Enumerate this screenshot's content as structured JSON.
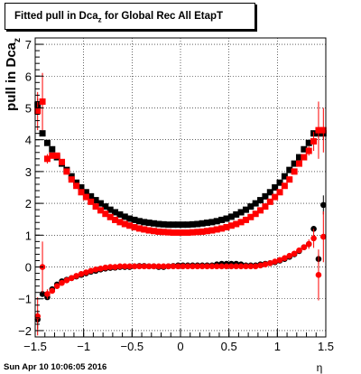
{
  "title": {
    "prefix": "Fitted pull in Dca",
    "sub": "z",
    "suffix": " for Global Rec All EtapT"
  },
  "timestamp": "Sun Apr 10 10:06:05 2016",
  "chart_data": {
    "type": "scatter",
    "title": "Fitted pull in Dcaz for Global Rec All EtapT",
    "xlabel": "η",
    "ylabel": "pull in Dca",
    "ylabel_sub": "z",
    "xlim": [
      -1.5,
      1.5
    ],
    "ylim": [
      -2.2,
      7.2
    ],
    "x_ticks": [
      -1.5,
      -1,
      -0.5,
      0,
      0.5,
      1,
      1.5
    ],
    "x_tick_labels": [
      "−1.5",
      "−1",
      "−0.5",
      "0",
      "0.5",
      "1",
      "1.5"
    ],
    "y_ticks": [
      -2,
      -1,
      0,
      1,
      2,
      3,
      4,
      5,
      6,
      7
    ],
    "y_tick_labels": [
      "−2",
      "−1",
      "0",
      "1",
      "2",
      "3",
      "4",
      "5",
      "6",
      "7"
    ],
    "grid": true,
    "x": [
      -1.475,
      -1.425,
      -1.375,
      -1.325,
      -1.275,
      -1.225,
      -1.175,
      -1.125,
      -1.075,
      -1.025,
      -0.975,
      -0.925,
      -0.875,
      -0.825,
      -0.775,
      -0.725,
      -0.675,
      -0.625,
      -0.575,
      -0.525,
      -0.475,
      -0.425,
      -0.375,
      -0.325,
      -0.275,
      -0.225,
      -0.175,
      -0.125,
      -0.075,
      -0.025,
      0.025,
      0.075,
      0.125,
      0.175,
      0.225,
      0.275,
      0.325,
      0.375,
      0.425,
      0.475,
      0.525,
      0.575,
      0.625,
      0.675,
      0.725,
      0.775,
      0.825,
      0.875,
      0.925,
      0.975,
      1.025,
      1.075,
      1.125,
      1.175,
      1.225,
      1.275,
      1.325,
      1.375,
      1.425,
      1.475
    ],
    "series": [
      {
        "color": "#000000",
        "marker": "square",
        "values": [
          5.1,
          4.2,
          3.9,
          3.7,
          3.45,
          3.25,
          3.05,
          2.85,
          2.65,
          2.5,
          2.35,
          2.22,
          2.1,
          2.0,
          1.9,
          1.8,
          1.72,
          1.65,
          1.58,
          1.52,
          1.48,
          1.44,
          1.41,
          1.39,
          1.37,
          1.35,
          1.34,
          1.33,
          1.33,
          1.33,
          1.33,
          1.33,
          1.34,
          1.35,
          1.37,
          1.39,
          1.41,
          1.44,
          1.48,
          1.52,
          1.58,
          1.65,
          1.72,
          1.8,
          1.9,
          2.0,
          2.1,
          2.22,
          2.35,
          2.5,
          2.65,
          2.85,
          3.05,
          3.25,
          3.45,
          3.7,
          3.9,
          4.2,
          4.2,
          4.2
        ],
        "errors": [
          0.2,
          0.1,
          0.08,
          0.05,
          0.04,
          0.03,
          0.03,
          0.02,
          0.02,
          0.02,
          0.02,
          0.02,
          0.02,
          0.02,
          0.02,
          0.02,
          0.02,
          0.02,
          0.02,
          0.02,
          0.02,
          0.02,
          0.02,
          0.02,
          0.02,
          0.02,
          0.02,
          0.02,
          0.02,
          0.02,
          0.02,
          0.02,
          0.02,
          0.02,
          0.02,
          0.02,
          0.02,
          0.02,
          0.02,
          0.02,
          0.02,
          0.02,
          0.02,
          0.02,
          0.02,
          0.02,
          0.02,
          0.02,
          0.02,
          0.02,
          0.02,
          0.02,
          0.03,
          0.03,
          0.04,
          0.05,
          0.08,
          0.1,
          0.15,
          0.2
        ]
      },
      {
        "color": "#ff0000",
        "marker": "square",
        "values": [
          4.9,
          5.2,
          3.4,
          3.5,
          3.5,
          3.3,
          3.0,
          2.75,
          2.55,
          2.35,
          2.2,
          2.05,
          1.9,
          1.78,
          1.67,
          1.57,
          1.48,
          1.41,
          1.35,
          1.3,
          1.25,
          1.21,
          1.18,
          1.15,
          1.13,
          1.11,
          1.1,
          1.09,
          1.08,
          1.08,
          1.08,
          1.08,
          1.09,
          1.1,
          1.11,
          1.13,
          1.15,
          1.18,
          1.21,
          1.25,
          1.3,
          1.35,
          1.41,
          1.48,
          1.57,
          1.67,
          1.78,
          1.9,
          2.05,
          2.2,
          2.35,
          2.55,
          2.75,
          3.0,
          3.25,
          3.45,
          3.65,
          3.95,
          4.3,
          4.3
        ],
        "errors": [
          0.6,
          0.9,
          0.15,
          0.1,
          0.06,
          0.05,
          0.04,
          0.03,
          0.03,
          0.03,
          0.03,
          0.03,
          0.03,
          0.03,
          0.03,
          0.03,
          0.03,
          0.03,
          0.03,
          0.03,
          0.03,
          0.03,
          0.03,
          0.03,
          0.03,
          0.03,
          0.03,
          0.03,
          0.03,
          0.03,
          0.03,
          0.03,
          0.03,
          0.03,
          0.03,
          0.03,
          0.03,
          0.03,
          0.03,
          0.03,
          0.03,
          0.03,
          0.03,
          0.03,
          0.03,
          0.03,
          0.03,
          0.03,
          0.03,
          0.03,
          0.03,
          0.03,
          0.04,
          0.05,
          0.06,
          0.1,
          0.15,
          0.3,
          0.9,
          0.7
        ]
      },
      {
        "color": "#000000",
        "marker": "circle",
        "values": [
          -1.65,
          -0.85,
          -0.95,
          -0.7,
          -0.55,
          -0.45,
          -0.4,
          -0.35,
          -0.3,
          -0.25,
          -0.2,
          -0.15,
          -0.12,
          -0.08,
          -0.05,
          -0.03,
          -0.02,
          0.0,
          0.0,
          0.0,
          0.02,
          0.03,
          0.03,
          0.02,
          0.02,
          0.0,
          0.0,
          0.02,
          0.03,
          0.05,
          0.05,
          0.05,
          0.05,
          0.05,
          0.05,
          0.05,
          0.05,
          0.08,
          0.1,
          0.1,
          0.1,
          0.1,
          0.08,
          0.05,
          0.05,
          0.05,
          0.08,
          0.1,
          0.12,
          0.15,
          0.2,
          0.25,
          0.32,
          0.4,
          0.5,
          0.62,
          0.72,
          1.2,
          0.25,
          1.95
        ],
        "errors": [
          0.3,
          0.1,
          0.08,
          0.06,
          0.04,
          0.03,
          0.03,
          0.02,
          0.02,
          0.02,
          0.02,
          0.02,
          0.02,
          0.02,
          0.02,
          0.02,
          0.02,
          0.02,
          0.02,
          0.02,
          0.02,
          0.02,
          0.02,
          0.02,
          0.02,
          0.02,
          0.02,
          0.02,
          0.02,
          0.02,
          0.02,
          0.02,
          0.02,
          0.02,
          0.02,
          0.02,
          0.02,
          0.02,
          0.02,
          0.02,
          0.02,
          0.02,
          0.02,
          0.02,
          0.02,
          0.02,
          0.02,
          0.02,
          0.02,
          0.02,
          0.02,
          0.02,
          0.03,
          0.03,
          0.04,
          0.06,
          0.08,
          0.1,
          0.15,
          0.3
        ]
      },
      {
        "color": "#ff0000",
        "marker": "circle",
        "values": [
          -1.55,
          0.0,
          -0.85,
          -0.75,
          -0.6,
          -0.5,
          -0.42,
          -0.35,
          -0.28,
          -0.22,
          -0.17,
          -0.12,
          -0.08,
          -0.05,
          -0.02,
          0.0,
          0.0,
          0.02,
          0.02,
          0.02,
          0.02,
          0.02,
          0.02,
          0.02,
          0.02,
          0.02,
          0.02,
          0.02,
          0.02,
          0.02,
          0.02,
          0.02,
          0.02,
          0.02,
          0.02,
          0.02,
          0.02,
          0.02,
          0.02,
          0.02,
          0.02,
          0.02,
          0.02,
          0.02,
          0.02,
          0.02,
          0.05,
          0.08,
          0.12,
          0.17,
          0.22,
          0.28,
          0.35,
          0.42,
          0.52,
          0.62,
          0.72,
          0.9,
          -0.25,
          0.95
        ],
        "errors": [
          0.6,
          0.8,
          0.15,
          0.1,
          0.06,
          0.05,
          0.04,
          0.03,
          0.03,
          0.03,
          0.03,
          0.03,
          0.03,
          0.03,
          0.03,
          0.03,
          0.03,
          0.03,
          0.03,
          0.03,
          0.03,
          0.03,
          0.03,
          0.03,
          0.03,
          0.03,
          0.03,
          0.03,
          0.03,
          0.03,
          0.03,
          0.03,
          0.03,
          0.03,
          0.03,
          0.03,
          0.03,
          0.03,
          0.03,
          0.03,
          0.03,
          0.03,
          0.03,
          0.03,
          0.03,
          0.03,
          0.03,
          0.03,
          0.03,
          0.03,
          0.03,
          0.03,
          0.04,
          0.05,
          0.06,
          0.1,
          0.15,
          0.3,
          0.8,
          0.8
        ]
      }
    ]
  }
}
